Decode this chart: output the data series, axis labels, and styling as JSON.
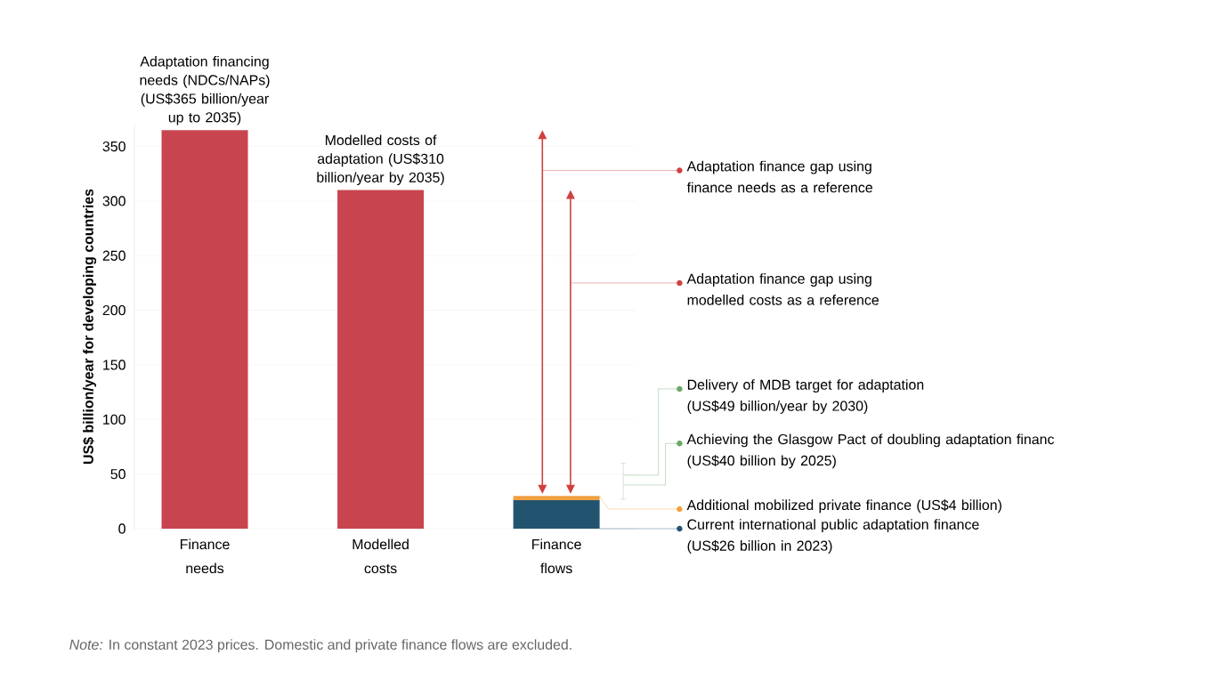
{
  "chart_data": {
    "type": "bar",
    "stacked": true,
    "categories": [
      "Finance needs",
      "Modelled costs",
      "Finance flows"
    ],
    "series": [
      {
        "color": "#c8454f",
        "values": [
          365,
          310,
          null
        ]
      },
      {
        "color": "#22546f",
        "values": [
          null,
          null,
          26
        ]
      },
      {
        "color": "#f0a040",
        "values": [
          null,
          null,
          4
        ]
      }
    ],
    "ylabel": "US$ billion/year for developing countries",
    "ylim": [
      0,
      370
    ],
    "yticks": [
      0,
      50,
      100,
      150,
      200,
      250,
      300,
      350
    ],
    "grid": "y",
    "annotations": [
      {
        "text": "Adaptation financing needs (NDCs/NAPs) (US$365 billion/year up to 2035)",
        "x": "Finance needs",
        "y": 365
      },
      {
        "text": "Modelled costs of adaptation (US$310 billion/year by 2035)",
        "x": "Modelled costs",
        "y": 310
      },
      "Adaptation finance gap using finance needs as a reference",
      "Adaptation finance gap using modelled costs as a reference",
      "Delivery of MDB target for adaptation (US$49 billion/year by 2030)",
      "Achieving the Glasgow Pact of doubling adaptation financ (US$40 billion by 2025)",
      "Additional mobilized private finance (US$4 billion)",
      "Current international public adaptation finance (US$26 billion in 2023)",
      "*Note:* In constant 2023 prices. Domestic and private finance flows are excluded."
    ]
  }
}
